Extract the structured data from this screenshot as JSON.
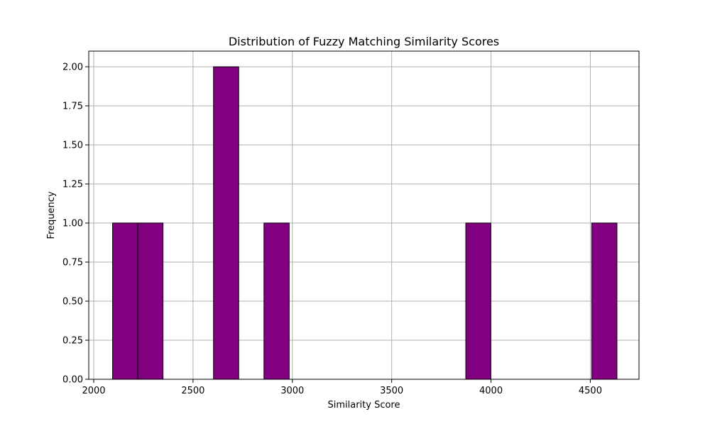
{
  "chart_data": {
    "type": "bar",
    "title": "Distribution of Fuzzy Matching Similarity Scores",
    "xlabel": "Similarity Score",
    "ylabel": "Frequency",
    "xlim": [
      1975,
      4745
    ],
    "ylim": [
      0,
      2.1
    ],
    "xticks": [
      "2000",
      "2500",
      "3000",
      "3500",
      "4000",
      "4500"
    ],
    "xtick_values": [
      2000,
      2500,
      3000,
      3500,
      4000,
      4500
    ],
    "yticks": [
      "0.00",
      "0.25",
      "0.50",
      "0.75",
      "1.00",
      "1.25",
      "1.50",
      "1.75",
      "2.00"
    ],
    "ytick_values": [
      0,
      0.25,
      0.5,
      0.75,
      1.0,
      1.25,
      1.5,
      1.75,
      2.0
    ],
    "bins": [
      {
        "start": 2095,
        "end": 2222,
        "count": 1
      },
      {
        "start": 2222,
        "end": 2349,
        "count": 1
      },
      {
        "start": 2603,
        "end": 2730,
        "count": 2
      },
      {
        "start": 2857,
        "end": 2984,
        "count": 1
      },
      {
        "start": 3873,
        "end": 3999,
        "count": 1
      },
      {
        "start": 4507,
        "end": 4634,
        "count": 1
      }
    ],
    "grid": true,
    "bar_color": "#800080",
    "edge_color": "#000000"
  }
}
